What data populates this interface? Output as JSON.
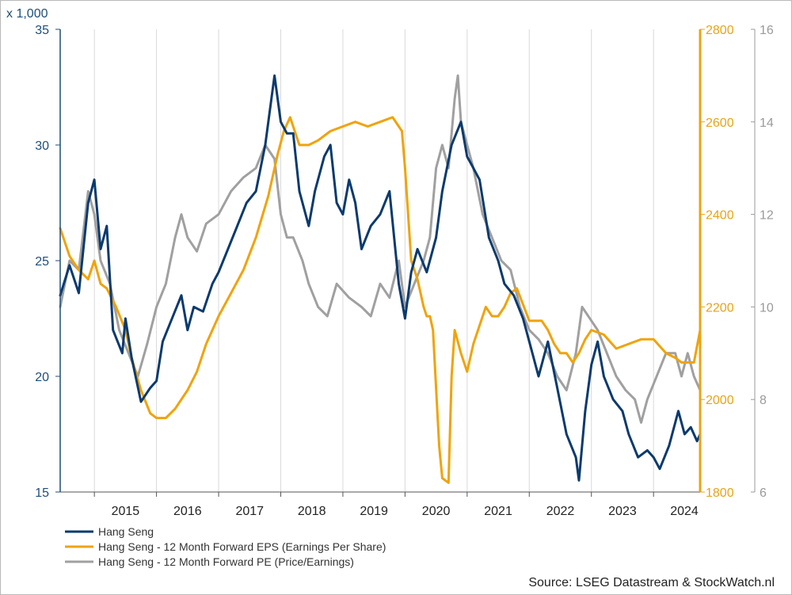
{
  "chart_data": {
    "type": "line",
    "multiplier_label": "x 1,000",
    "x_labels": [
      "2015",
      "2016",
      "2017",
      "2018",
      "2019",
      "2020",
      "2021",
      "2022",
      "2023",
      "2024"
    ],
    "x_range": [
      2014.45,
      2024.75
    ],
    "axes": {
      "left": {
        "ylim": [
          15,
          35
        ],
        "ticks": [
          "15",
          "20",
          "25",
          "30",
          "35"
        ],
        "color": "#1f4e79"
      },
      "right1": {
        "ylim": [
          1800,
          2800
        ],
        "ticks": [
          "1800",
          "2000",
          "2200",
          "2400",
          "2600",
          "2800"
        ],
        "color": "#e8a317"
      },
      "right2": {
        "ylim": [
          6,
          16
        ],
        "ticks": [
          "6",
          "8",
          "10",
          "12",
          "14",
          "16"
        ],
        "color": "#a0a0a0"
      }
    },
    "grid": "vertical",
    "series": [
      {
        "name": "Hang Seng",
        "axis": "left",
        "color": "#0b3a6e",
        "x": [
          2014.45,
          2014.6,
          2014.75,
          2014.9,
          2015.0,
          2015.1,
          2015.2,
          2015.3,
          2015.45,
          2015.5,
          2015.6,
          2015.75,
          2015.9,
          2016.0,
          2016.1,
          2016.25,
          2016.4,
          2016.5,
          2016.6,
          2016.75,
          2016.9,
          2017.0,
          2017.15,
          2017.3,
          2017.45,
          2017.6,
          2017.75,
          2017.9,
          2018.0,
          2018.1,
          2018.2,
          2018.3,
          2018.45,
          2018.55,
          2018.7,
          2018.8,
          2018.9,
          2019.0,
          2019.1,
          2019.2,
          2019.3,
          2019.45,
          2019.6,
          2019.75,
          2019.9,
          2020.0,
          2020.1,
          2020.2,
          2020.35,
          2020.5,
          2020.6,
          2020.75,
          2020.9,
          2021.0,
          2021.1,
          2021.2,
          2021.35,
          2021.5,
          2021.6,
          2021.75,
          2021.9,
          2022.0,
          2022.15,
          2022.3,
          2022.45,
          2022.6,
          2022.75,
          2022.8,
          2022.9,
          2023.0,
          2023.1,
          2023.2,
          2023.35,
          2023.5,
          2023.6,
          2023.75,
          2023.9,
          2024.0,
          2024.1,
          2024.25,
          2024.4,
          2024.5,
          2024.6,
          2024.7,
          2024.75
        ],
        "values": [
          23.5,
          24.8,
          23.6,
          27.5,
          28.5,
          25.5,
          26.5,
          22.0,
          21.0,
          22.5,
          20.8,
          18.9,
          19.5,
          19.8,
          21.5,
          22.5,
          23.5,
          22.0,
          23.0,
          22.8,
          24.0,
          24.5,
          25.5,
          26.5,
          27.5,
          28.0,
          30.0,
          33.0,
          31.0,
          30.5,
          30.5,
          28.0,
          26.5,
          28.0,
          29.5,
          30.0,
          27.5,
          27.0,
          28.5,
          27.5,
          25.5,
          26.5,
          27.0,
          28.0,
          24.0,
          22.5,
          24.5,
          25.5,
          24.5,
          26.0,
          28.0,
          30.0,
          31.0,
          29.5,
          29.0,
          28.5,
          26.0,
          25.0,
          24.0,
          23.5,
          22.5,
          21.5,
          20.0,
          21.5,
          19.5,
          17.5,
          16.5,
          15.5,
          18.5,
          20.5,
          21.5,
          20.0,
          19.0,
          18.5,
          17.5,
          16.5,
          16.8,
          16.5,
          16.0,
          17.0,
          18.5,
          17.5,
          17.8,
          17.2,
          17.5
        ]
      },
      {
        "name": "Hang Seng - 12 Month Forward EPS (Earnings Per Share)",
        "axis": "right1",
        "color": "#f0a30a",
        "x": [
          2014.45,
          2014.6,
          2014.75,
          2014.9,
          2015.0,
          2015.1,
          2015.2,
          2015.35,
          2015.5,
          2015.6,
          2015.75,
          2015.9,
          2016.0,
          2016.15,
          2016.3,
          2016.5,
          2016.65,
          2016.8,
          2017.0,
          2017.2,
          2017.4,
          2017.6,
          2017.8,
          2017.95,
          2018.05,
          2018.15,
          2018.3,
          2018.45,
          2018.6,
          2018.8,
          2019.0,
          2019.2,
          2019.4,
          2019.6,
          2019.8,
          2019.95,
          2020.0,
          2020.1,
          2020.2,
          2020.3,
          2020.35,
          2020.4,
          2020.45,
          2020.55,
          2020.6,
          2020.7,
          2020.75,
          2020.8,
          2020.9,
          2021.0,
          2021.1,
          2021.2,
          2021.3,
          2021.4,
          2021.5,
          2021.6,
          2021.7,
          2021.8,
          2022.0,
          2022.2,
          2022.3,
          2022.4,
          2022.5,
          2022.6,
          2022.7,
          2022.8,
          2022.9,
          2023.0,
          2023.2,
          2023.4,
          2023.6,
          2023.8,
          2024.0,
          2024.2,
          2024.35,
          2024.45,
          2024.55,
          2024.65,
          2024.75
        ],
        "values": [
          2370,
          2310,
          2280,
          2260,
          2300,
          2250,
          2240,
          2200,
          2150,
          2090,
          2020,
          1970,
          1960,
          1960,
          1980,
          2020,
          2060,
          2120,
          2180,
          2230,
          2280,
          2350,
          2440,
          2530,
          2580,
          2610,
          2550,
          2550,
          2560,
          2580,
          2590,
          2600,
          2590,
          2600,
          2610,
          2580,
          2500,
          2300,
          2260,
          2200,
          2180,
          2180,
          2150,
          1900,
          1830,
          1820,
          2050,
          2150,
          2100,
          2060,
          2120,
          2160,
          2200,
          2180,
          2180,
          2200,
          2230,
          2240,
          2170,
          2170,
          2150,
          2120,
          2100,
          2100,
          2080,
          2100,
          2130,
          2150,
          2140,
          2110,
          2120,
          2130,
          2130,
          2100,
          2090,
          2080,
          2080,
          2080,
          2150
        ]
      },
      {
        "name": "Hang Seng - 12 Month Forward PE (Price/Earnings)",
        "axis": "right2",
        "color": "#a0a0a0",
        "x": [
          2014.45,
          2014.6,
          2014.75,
          2014.9,
          2015.0,
          2015.1,
          2015.25,
          2015.4,
          2015.55,
          2015.7,
          2015.85,
          2016.0,
          2016.15,
          2016.3,
          2016.4,
          2016.5,
          2016.65,
          2016.8,
          2017.0,
          2017.2,
          2017.4,
          2017.6,
          2017.75,
          2017.9,
          2018.0,
          2018.1,
          2018.2,
          2018.35,
          2018.45,
          2018.6,
          2018.75,
          2018.9,
          2019.1,
          2019.3,
          2019.45,
          2019.6,
          2019.75,
          2019.9,
          2020.0,
          2020.15,
          2020.3,
          2020.4,
          2020.5,
          2020.6,
          2020.7,
          2020.8,
          2020.85,
          2020.9,
          2021.0,
          2021.1,
          2021.25,
          2021.4,
          2021.55,
          2021.7,
          2021.85,
          2022.0,
          2022.15,
          2022.3,
          2022.45,
          2022.6,
          2022.75,
          2022.85,
          2022.95,
          2023.1,
          2023.25,
          2023.4,
          2023.55,
          2023.7,
          2023.8,
          2023.9,
          2024.05,
          2024.2,
          2024.35,
          2024.45,
          2024.55,
          2024.65,
          2024.75
        ],
        "values": [
          10.0,
          11.0,
          10.8,
          12.5,
          12.0,
          11.0,
          10.5,
          9.5,
          9.0,
          8.5,
          9.2,
          10.0,
          10.5,
          11.5,
          12.0,
          11.5,
          11.2,
          11.8,
          12.0,
          12.5,
          12.8,
          13.0,
          13.5,
          13.2,
          12.0,
          11.5,
          11.5,
          11.0,
          10.5,
          10.0,
          9.8,
          10.5,
          10.2,
          10.0,
          9.8,
          10.5,
          10.2,
          11.0,
          10.0,
          10.5,
          11.0,
          11.5,
          13.0,
          13.5,
          13.0,
          14.5,
          15.0,
          14.0,
          13.5,
          13.0,
          12.0,
          11.5,
          11.0,
          10.8,
          10.0,
          9.5,
          9.3,
          9.0,
          8.5,
          8.2,
          9.0,
          10.0,
          9.8,
          9.5,
          9.0,
          8.5,
          8.2,
          8.0,
          7.5,
          8.0,
          8.5,
          9.0,
          9.0,
          8.5,
          9.0,
          8.5,
          8.2
        ]
      }
    ],
    "legend_position": "bottom-left"
  },
  "source_text": "Source: LSEG Datastream & StockWatch.nl"
}
